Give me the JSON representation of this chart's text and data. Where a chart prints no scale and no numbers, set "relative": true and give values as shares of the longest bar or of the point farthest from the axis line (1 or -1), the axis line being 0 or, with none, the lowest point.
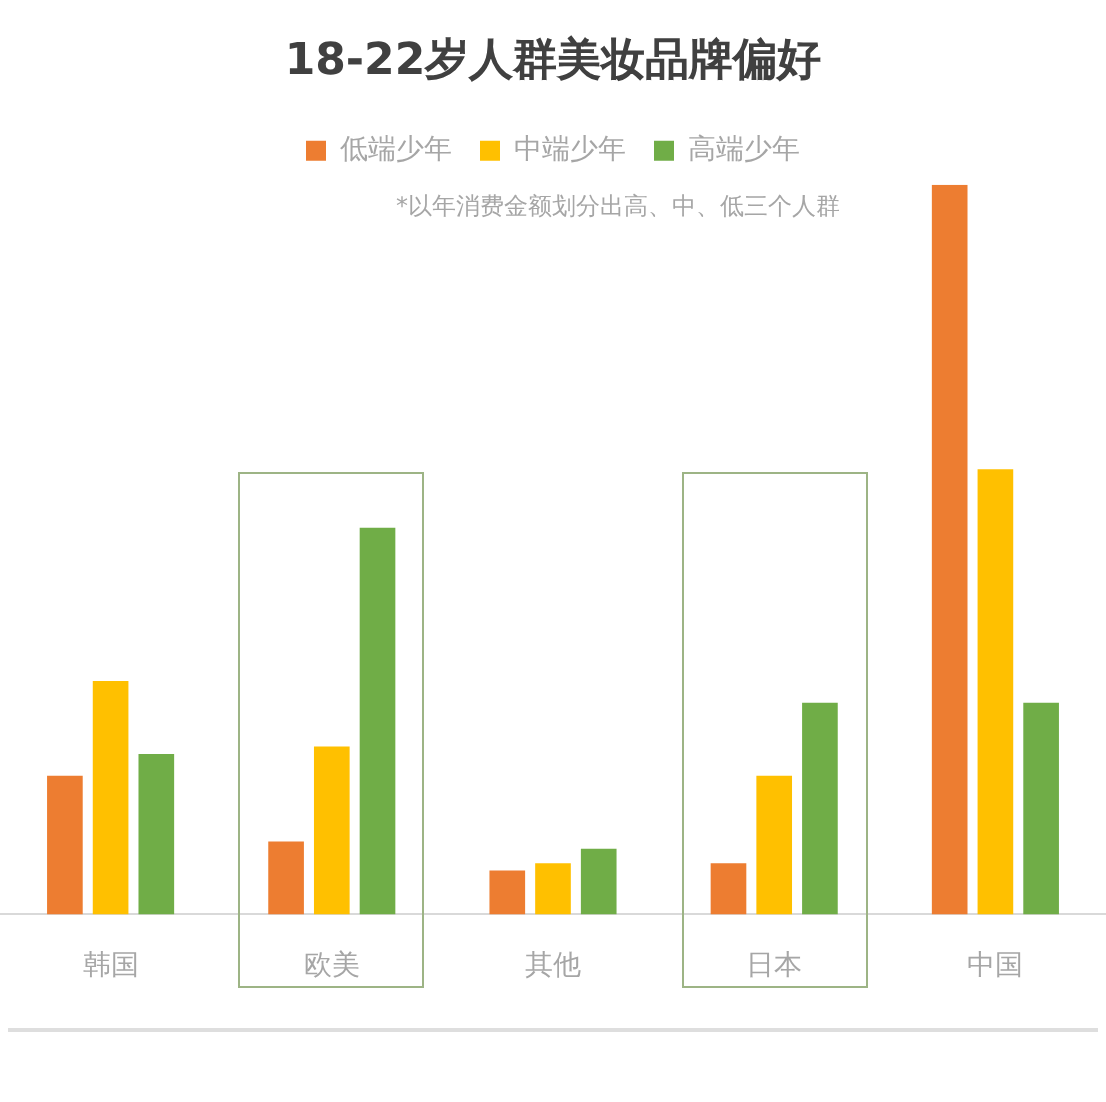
{
  "chart_data": {
    "type": "bar",
    "title": "18-22岁人群美妆品牌偏好",
    "categories": [
      "韩国",
      "欧美",
      "其他",
      "日本",
      "中国"
    ],
    "series": [
      {
        "name": "低端少年",
        "color": "#ed7d31",
        "values": [
          0.19,
          0.1,
          0.06,
          0.07,
          1
        ]
      },
      {
        "name": "中端少年",
        "color": "#ffc000",
        "values": [
          0.32,
          0.23,
          0.07,
          0.19,
          0.61
        ]
      },
      {
        "name": "高端少年",
        "color": "#70ad47",
        "values": [
          0.22,
          0.53,
          0.09,
          0.29,
          0.29
        ]
      }
    ],
    "relative": true,
    "legend": "top",
    "annotations": [
      "*以年消费金额划分出高、中、低三个人群"
    ]
  }
}
